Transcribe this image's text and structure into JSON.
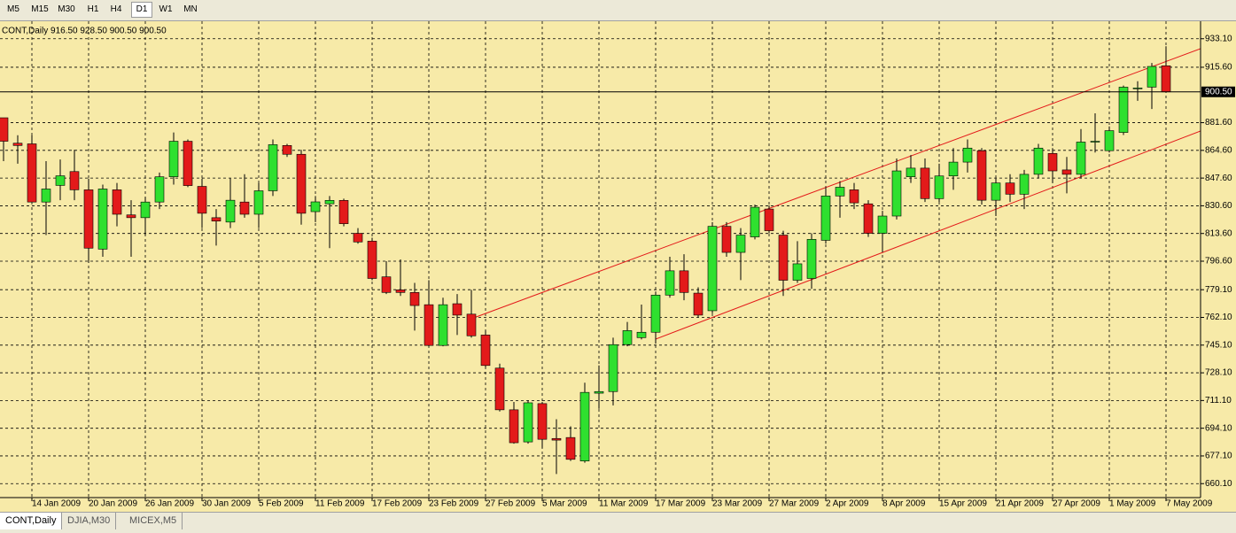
{
  "toolbar": [
    "M5",
    "M15",
    "M30",
    "H1",
    "H4",
    "D1",
    "W1",
    "MN"
  ],
  "toolbar_active": 5,
  "tabs": [
    "CONT,Daily",
    "DJIA,M30",
    "MICEX,M5"
  ],
  "tab_active": 0,
  "chart_data": {
    "type": "candlestick",
    "title": "CONT,Daily  916.50 928.50 900.50 900.50",
    "categories": [
      null,
      null,
      "14 Jan 2009",
      null,
      null,
      null,
      "20 Jan 2009",
      null,
      null,
      null,
      "26 Jan 2009",
      null,
      null,
      null,
      "30 Jan 2009",
      null,
      null,
      null,
      "5 Feb 2009",
      null,
      null,
      null,
      "11 Feb 2009",
      null,
      null,
      null,
      "17 Feb 2009",
      null,
      null,
      null,
      "23 Feb 2009",
      null,
      null,
      null,
      "27 Feb 2009",
      null,
      null,
      null,
      "5 Mar 2009",
      null,
      null,
      null,
      "11 Mar 2009",
      null,
      null,
      null,
      "17 Mar 2009",
      null,
      null,
      null,
      "23 Mar 2009",
      null,
      null,
      null,
      "27 Mar 2009",
      null,
      null,
      null,
      "2 Apr 2009",
      null,
      null,
      null,
      "8 Apr 2009",
      null,
      null,
      null,
      "15 Apr 2009",
      null,
      null,
      null,
      "21 Apr 2009",
      null,
      null,
      null,
      "27 Apr 2009",
      null,
      null,
      null,
      "1 May 2009",
      null,
      null,
      null,
      "7 May 2009"
    ],
    "open": [
      884.6,
      869,
      868.6,
      832.9,
      843.1,
      851.6,
      840.4,
      804,
      840.4,
      825,
      823.3,
      832.9,
      848.4,
      870.2,
      842.5,
      823.3,
      820.6,
      832.9,
      825.4,
      839.8,
      867.6,
      862.2,
      827,
      831.8,
      833.9,
      813.7,
      808.9,
      787,
      779,
      777.4,
      769.9,
      744.9,
      770.5,
      764.1,
      751.3,
      731,
      705.4,
      685.7,
      709.2,
      687.8,
      688.4,
      674,
      715.6,
      716.6,
      745.4,
      749.7,
      753,
      775.8,
      790.7,
      777,
      766.2,
      818,
      802,
      811.5,
      828.6,
      812.6,
      784.9,
      786,
      809.4,
      836.6,
      840.4,
      831.8,
      813.7,
      824.3,
      848.4,
      853.7,
      835,
      848.9,
      857.4,
      864.4,
      834,
      844.6,
      837.7,
      849.9,
      862.7,
      852.6,
      849.9,
      869.7,
      864.4,
      875.6,
      902.4,
      903.4,
      916.5
    ],
    "high": [
      884.6,
      873.9,
      873.9,
      858,
      859,
      864.9,
      847.3,
      843.6,
      844.6,
      834,
      836,
      851,
      875.6,
      871.3,
      847.3,
      828.6,
      847.3,
      850,
      844.6,
      871.3,
      868.6,
      864.9,
      836.6,
      836.6,
      835,
      816.9,
      811,
      796.6,
      797.7,
      783.3,
      784.9,
      774.2,
      776.4,
      779,
      754,
      733.7,
      710.2,
      711.3,
      710.2,
      699.6,
      695.3,
      722,
      732.6,
      749.7,
      759.3,
      770,
      778,
      799.3,
      800.9,
      780.6,
      820.6,
      820.6,
      816.9,
      831.3,
      830.8,
      815.3,
      808.9,
      813.7,
      842,
      845.7,
      844.6,
      834,
      827.5,
      859.6,
      861.7,
      859.6,
      856.4,
      866,
      871.3,
      866,
      847.3,
      850,
      852.6,
      868.6,
      866,
      860.6,
      877.7,
      887.3,
      879.3,
      904.4,
      907,
      918.2,
      928.5
    ],
    "low": [
      858,
      856.4,
      832.9,
      812.6,
      834,
      834,
      795.6,
      799.3,
      818,
      799.3,
      812.6,
      828.6,
      843.6,
      842,
      816.9,
      806.2,
      816.9,
      823.3,
      816.9,
      836.6,
      860.6,
      819,
      820.6,
      804.6,
      818,
      807.3,
      784.9,
      776.4,
      775.3,
      754,
      744.4,
      744.4,
      751.3,
      749.7,
      731.5,
      704.4,
      684.6,
      684.6,
      682,
      666,
      674,
      672.9,
      706,
      708.1,
      744.4,
      748.6,
      746,
      774.2,
      772.6,
      762,
      764.6,
      799.3,
      785,
      810,
      813.7,
      775.3,
      783.3,
      779.6,
      807.3,
      823.3,
      828.6,
      811.5,
      802,
      822.2,
      844.6,
      832.9,
      832.9,
      840.4,
      851,
      831.3,
      824.3,
      832.9,
      828.6,
      847.3,
      844.6,
      838.2,
      847.3,
      863.3,
      863.3,
      874,
      895,
      890,
      900.5
    ],
    "close": [
      870.2,
      867.6,
      832.9,
      840.9,
      849,
      840.4,
      804.6,
      840.9,
      825.4,
      823.3,
      832.9,
      848.4,
      870.2,
      843,
      826,
      821.2,
      834,
      825.4,
      839.8,
      868.1,
      862.2,
      826,
      833,
      833.9,
      819.6,
      808.4,
      786,
      777.4,
      777.4,
      769.4,
      744.9,
      769.9,
      763.5,
      750.8,
      732.6,
      705.4,
      685.2,
      709.7,
      687.3,
      686.8,
      675,
      716.1,
      716.6,
      745.4,
      754,
      753,
      775.8,
      790.7,
      777.4,
      763.5,
      818,
      802,
      812.6,
      829.7,
      815.3,
      784.9,
      795,
      810,
      836.6,
      842,
      832.4,
      813.7,
      824.3,
      852,
      853.7,
      835,
      848.9,
      857.4,
      866,
      834,
      844.6,
      837.7,
      849.9,
      866,
      852,
      849.9,
      869.7,
      870.2,
      876.7,
      903.4,
      902.9,
      916.1,
      900.5
    ],
    "up_color": "#2fe02f",
    "down_color": "#e31a1a",
    "ylim": [
      654.8,
      942.2
    ],
    "yticks": [
      {
        "value": 933.1,
        "label": "933.10"
      },
      {
        "value": 915.6,
        "label": "915.60"
      },
      {
        "value": 881.6,
        "label": "881.60"
      },
      {
        "value": 864.6,
        "label": "864.60"
      },
      {
        "value": 847.6,
        "label": "847.60"
      },
      {
        "value": 830.6,
        "label": "830.60"
      },
      {
        "value": 813.6,
        "label": "813.60"
      },
      {
        "value": 796.6,
        "label": "796.60"
      },
      {
        "value": 779.1,
        "label": "779.10"
      },
      {
        "value": 762.1,
        "label": "762.10"
      },
      {
        "value": 745.1,
        "label": "745.10"
      },
      {
        "value": 728.1,
        "label": "728.10"
      },
      {
        "value": 711.1,
        "label": "711.10"
      },
      {
        "value": 694.1,
        "label": "694.10"
      },
      {
        "value": 677.1,
        "label": "677.10"
      },
      {
        "value": 660.1,
        "label": "660.10"
      }
    ],
    "current_price": {
      "value": 900.5,
      "label": "900.50"
    },
    "grid": true
  }
}
